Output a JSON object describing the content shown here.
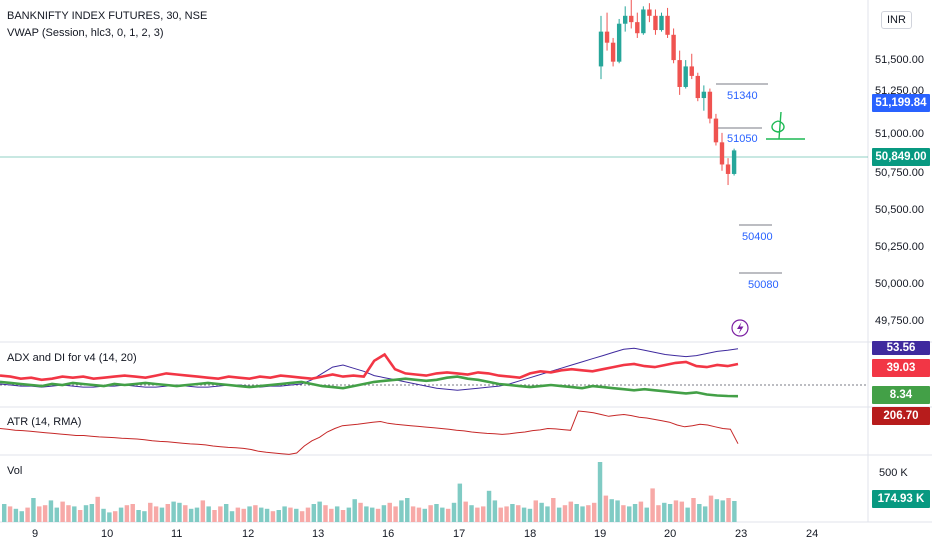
{
  "header": {
    "symbol": "BANKNIFTY INDEX FUTURES, 30, NSE",
    "vwap": "VWAP (Session, hlc3, 0, 1, 2, 3)"
  },
  "currency": "INR",
  "price_axis": {
    "ticks": [
      "51,500.00",
      "51,250.00",
      "51,000.00",
      "50,750.00",
      "50,500.00",
      "50,250.00",
      "50,000.00",
      "49,750.00"
    ],
    "tags": {
      "vwap": "51,199.84",
      "last": "50,849.00"
    }
  },
  "annotations": [
    "51340",
    "51050",
    "50400",
    "50080"
  ],
  "panes": {
    "adx": {
      "title": "ADX and DI for v4 (14, 20)",
      "values": [
        "53.56",
        "39.03",
        "8.34"
      ]
    },
    "atr": {
      "title": "ATR (14, RMA)",
      "value": "206.70"
    },
    "vol": {
      "title": "Vol",
      "axis": "500 K",
      "value": "174.93 K"
    }
  },
  "x_axis": [
    "9",
    "10",
    "11",
    "12",
    "13",
    "16",
    "17",
    "18",
    "19",
    "20",
    "23",
    "24"
  ],
  "colors": {
    "up": "#26a69a",
    "down": "#ef5350",
    "vwap_tag": "#2962ff",
    "last_tag": "#089981",
    "adx_line": "#3f2a9e",
    "plus_di": "#f23645",
    "minus_di": "#43a047",
    "atr": "#c62828"
  },
  "chart_data": {
    "type": "candlestick",
    "y_range": [
      49650,
      51800
    ],
    "candles": [
      {
        "o": 51380,
        "h": 51700,
        "l": 51300,
        "c": 51600
      },
      {
        "o": 51600,
        "h": 51720,
        "l": 51480,
        "c": 51530
      },
      {
        "o": 51530,
        "h": 51560,
        "l": 51380,
        "c": 51410
      },
      {
        "o": 51410,
        "h": 51680,
        "l": 51400,
        "c": 51650
      },
      {
        "o": 51650,
        "h": 51760,
        "l": 51600,
        "c": 51700
      },
      {
        "o": 51700,
        "h": 51800,
        "l": 51620,
        "c": 51660
      },
      {
        "o": 51660,
        "h": 51720,
        "l": 51560,
        "c": 51590
      },
      {
        "o": 51590,
        "h": 51760,
        "l": 51580,
        "c": 51740
      },
      {
        "o": 51740,
        "h": 51780,
        "l": 51660,
        "c": 51700
      },
      {
        "o": 51700,
        "h": 51740,
        "l": 51580,
        "c": 51610
      },
      {
        "o": 51610,
        "h": 51720,
        "l": 51600,
        "c": 51700
      },
      {
        "o": 51700,
        "h": 51750,
        "l": 51560,
        "c": 51580
      },
      {
        "o": 51580,
        "h": 51620,
        "l": 51400,
        "c": 51420
      },
      {
        "o": 51420,
        "h": 51480,
        "l": 51200,
        "c": 51250
      },
      {
        "o": 51250,
        "h": 51420,
        "l": 51240,
        "c": 51380
      },
      {
        "o": 51380,
        "h": 51460,
        "l": 51300,
        "c": 51320
      },
      {
        "o": 51320,
        "h": 51340,
        "l": 51160,
        "c": 51180
      },
      {
        "o": 51180,
        "h": 51260,
        "l": 51100,
        "c": 51220
      },
      {
        "o": 51220,
        "h": 51240,
        "l": 51020,
        "c": 51050
      },
      {
        "o": 51050,
        "h": 51080,
        "l": 50880,
        "c": 50900
      },
      {
        "o": 50900,
        "h": 50960,
        "l": 50720,
        "c": 50760
      },
      {
        "o": 50760,
        "h": 50800,
        "l": 50630,
        "c": 50700
      },
      {
        "o": 50700,
        "h": 50860,
        "l": 50690,
        "c": 50849
      }
    ],
    "volume_series": [
      150,
      130,
      110,
      90,
      120,
      200,
      130,
      140,
      180,
      120,
      170,
      140,
      130,
      100,
      140,
      150,
      210,
      110,
      80,
      90,
      120,
      140,
      150,
      100,
      90,
      160,
      130,
      120,
      150,
      170,
      160,
      140,
      110,
      120,
      180,
      130,
      100,
      130,
      150,
      90,
      120,
      110,
      130,
      140,
      120,
      110,
      90,
      100,
      130,
      120,
      110,
      90,
      120,
      150,
      170,
      140,
      110,
      130,
      100,
      120,
      190,
      160,
      130,
      120,
      110,
      140,
      160,
      130,
      180,
      200,
      130,
      120,
      110,
      140,
      150,
      120,
      110,
      160,
      320,
      170,
      140,
      120,
      130,
      260,
      180,
      120,
      130,
      150,
      140,
      120,
      110,
      180,
      160,
      130,
      200,
      120,
      140,
      170,
      150,
      130,
      140,
      160,
      500,
      220,
      190,
      180,
      140,
      130,
      150,
      170,
      120,
      280,
      140,
      160,
      150,
      180,
      170,
      120,
      200,
      150,
      130,
      220,
      190,
      180,
      200,
      175
    ],
    "adx_series": [
      20,
      19,
      18,
      18,
      17,
      18,
      19,
      18,
      17,
      17,
      18,
      18,
      19,
      18,
      17,
      17,
      18,
      19,
      18,
      17,
      17,
      18,
      19,
      19,
      18,
      17,
      18,
      18,
      19,
      20,
      24,
      30,
      36,
      38,
      35,
      32,
      28,
      26,
      24,
      22,
      20,
      18,
      16,
      15,
      14,
      15,
      16,
      17,
      18,
      20,
      23,
      26,
      29,
      32,
      35,
      38,
      41,
      44,
      47,
      50,
      53,
      54,
      52,
      50,
      48,
      47,
      46,
      47,
      49,
      51,
      52,
      53.56
    ],
    "plus_di_series": [
      28,
      27,
      25,
      26,
      24,
      25,
      27,
      26,
      27,
      25,
      26,
      27,
      28,
      27,
      26,
      28,
      30,
      29,
      28,
      27,
      26,
      25,
      27,
      26,
      25,
      27,
      26,
      28,
      27,
      26,
      25,
      27,
      29,
      27,
      28,
      27,
      42,
      48,
      34,
      30,
      29,
      28,
      30,
      31,
      30,
      29,
      31,
      30,
      28,
      27,
      26,
      30,
      32,
      31,
      33,
      34,
      33,
      32,
      34,
      36,
      38,
      39,
      37,
      36,
      38,
      40,
      41,
      37,
      36,
      38,
      37,
      39.03
    ],
    "minus_di_series": [
      22,
      21,
      20,
      19,
      18,
      20,
      19,
      21,
      20,
      19,
      18,
      20,
      19,
      20,
      21,
      20,
      19,
      18,
      19,
      20,
      21,
      20,
      19,
      18,
      17,
      18,
      19,
      20,
      21,
      22,
      20,
      18,
      17,
      16,
      18,
      20,
      22,
      23,
      24,
      25,
      24,
      23,
      24,
      26,
      27,
      25,
      24,
      22,
      20,
      19,
      18,
      17,
      18,
      19,
      18,
      17,
      16,
      18,
      17,
      16,
      15,
      14,
      15,
      14,
      13,
      12,
      11,
      12,
      10,
      9,
      8.6,
      8.34
    ],
    "atr_series": [
      250,
      248,
      245,
      244,
      242,
      240,
      238,
      236,
      234,
      232,
      230,
      230,
      228,
      226,
      225,
      224,
      222,
      221,
      220,
      218,
      215,
      213,
      212,
      210,
      208,
      206,
      205,
      203,
      200,
      198,
      196,
      195,
      193,
      190,
      185,
      182,
      180,
      178,
      176,
      180,
      200,
      215,
      225,
      240,
      250,
      258,
      260,
      262,
      265,
      268,
      270,
      265,
      262,
      260,
      258,
      256,
      254,
      252,
      250,
      248,
      245,
      243,
      240,
      238,
      236,
      235,
      233,
      235,
      238,
      240,
      244,
      246,
      250,
      249,
      247,
      245,
      300,
      298,
      295,
      290,
      285,
      288,
      290,
      287,
      282,
      280,
      276,
      272,
      268,
      260,
      255,
      258,
      262,
      260,
      255,
      250,
      248,
      206.7
    ]
  }
}
